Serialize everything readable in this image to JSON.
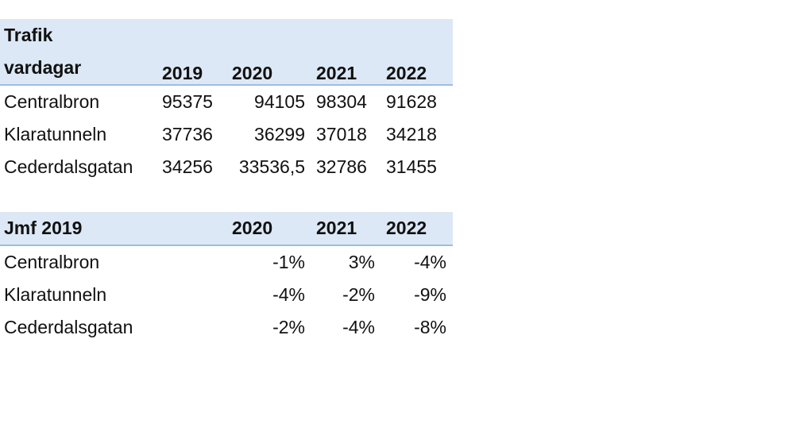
{
  "chart_data": [
    {
      "type": "table",
      "header": [
        "Trafik vardagar",
        "2019",
        "2020",
        "2021",
        "2022"
      ],
      "header_label_lines": [
        "Trafik",
        "vardagar"
      ],
      "rows": [
        {
          "label": "Centralbron",
          "values": [
            "95375",
            "94105",
            "98304",
            "91628"
          ]
        },
        {
          "label": "Klaratunneln",
          "values": [
            "37736",
            "36299",
            "37018",
            "34218"
          ]
        },
        {
          "label": "Cederdalsgatan",
          "values": [
            "34256",
            "33536,5",
            "32786",
            "31455"
          ]
        }
      ]
    },
    {
      "type": "table",
      "header": [
        "Jmf 2019",
        "",
        "2020",
        "2021",
        "2022"
      ],
      "rows": [
        {
          "label": "Centralbron",
          "values": [
            "",
            "-1%",
            "3%",
            "-4%"
          ]
        },
        {
          "label": "Klaratunneln",
          "values": [
            "",
            "-4%",
            "-2%",
            "-9%"
          ]
        },
        {
          "label": "Cederdalsgatan",
          "values": [
            "",
            "-2%",
            "-4%",
            "-8%"
          ]
        }
      ]
    }
  ],
  "colors": {
    "header_fill": "#dce8f5",
    "header_border": "#9dbde0",
    "text": "#111111"
  }
}
